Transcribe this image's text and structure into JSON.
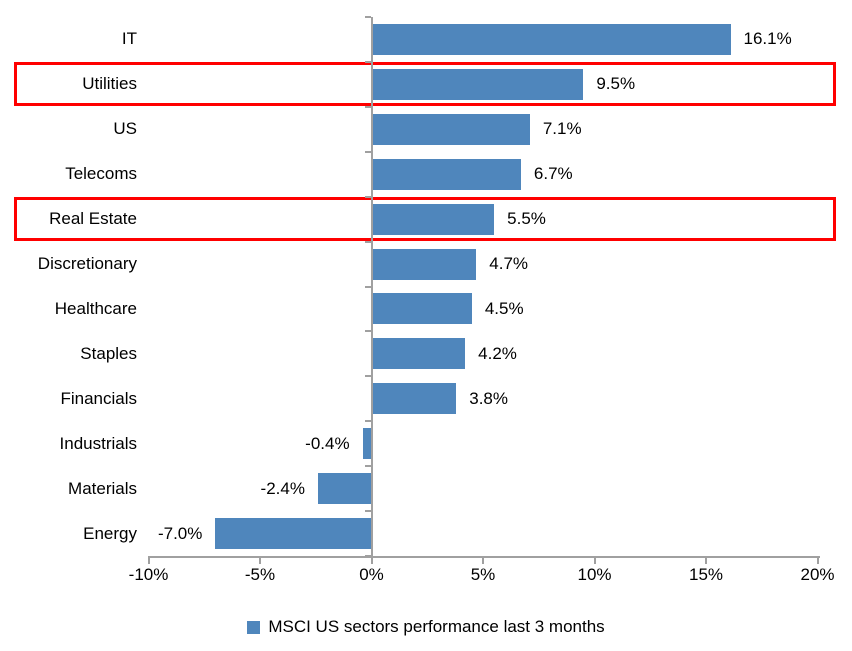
{
  "chart_data": {
    "type": "bar",
    "orientation": "horizontal",
    "title": "",
    "categories": [
      "IT",
      "Utilities",
      "US",
      "Telecoms",
      "Real Estate",
      "Discretionary",
      "Healthcare",
      "Staples",
      "Financials",
      "Industrials",
      "Materials",
      "Energy"
    ],
    "values": [
      16.1,
      9.5,
      7.1,
      6.7,
      5.5,
      4.7,
      4.5,
      4.2,
      3.8,
      -0.4,
      -2.4,
      -7.0
    ],
    "data_labels": [
      "16.1%",
      "9.5%",
      "7.1%",
      "6.7%",
      "5.5%",
      "4.7%",
      "4.5%",
      "4.2%",
      "3.8%",
      "-0.4%",
      "-2.4%",
      "-7.0%"
    ],
    "x_ticks": [
      -10,
      -5,
      0,
      5,
      10,
      15,
      20
    ],
    "x_tick_labels": [
      "-10%",
      "-5%",
      "0%",
      "5%",
      "10%",
      "15%",
      "20%"
    ],
    "xlim": [
      -10,
      20
    ],
    "grid": false,
    "legend_position": "bottom",
    "legend": [
      {
        "label": "MSCI US sectors performance last 3 months",
        "color": "#4F86BC"
      }
    ],
    "highlighted_categories": [
      "Utilities",
      "Real Estate"
    ],
    "colors": {
      "bar": "#4F86BC",
      "highlight_box": "#FF0000",
      "axis": "#A0A0A0",
      "text": "#000000"
    }
  }
}
